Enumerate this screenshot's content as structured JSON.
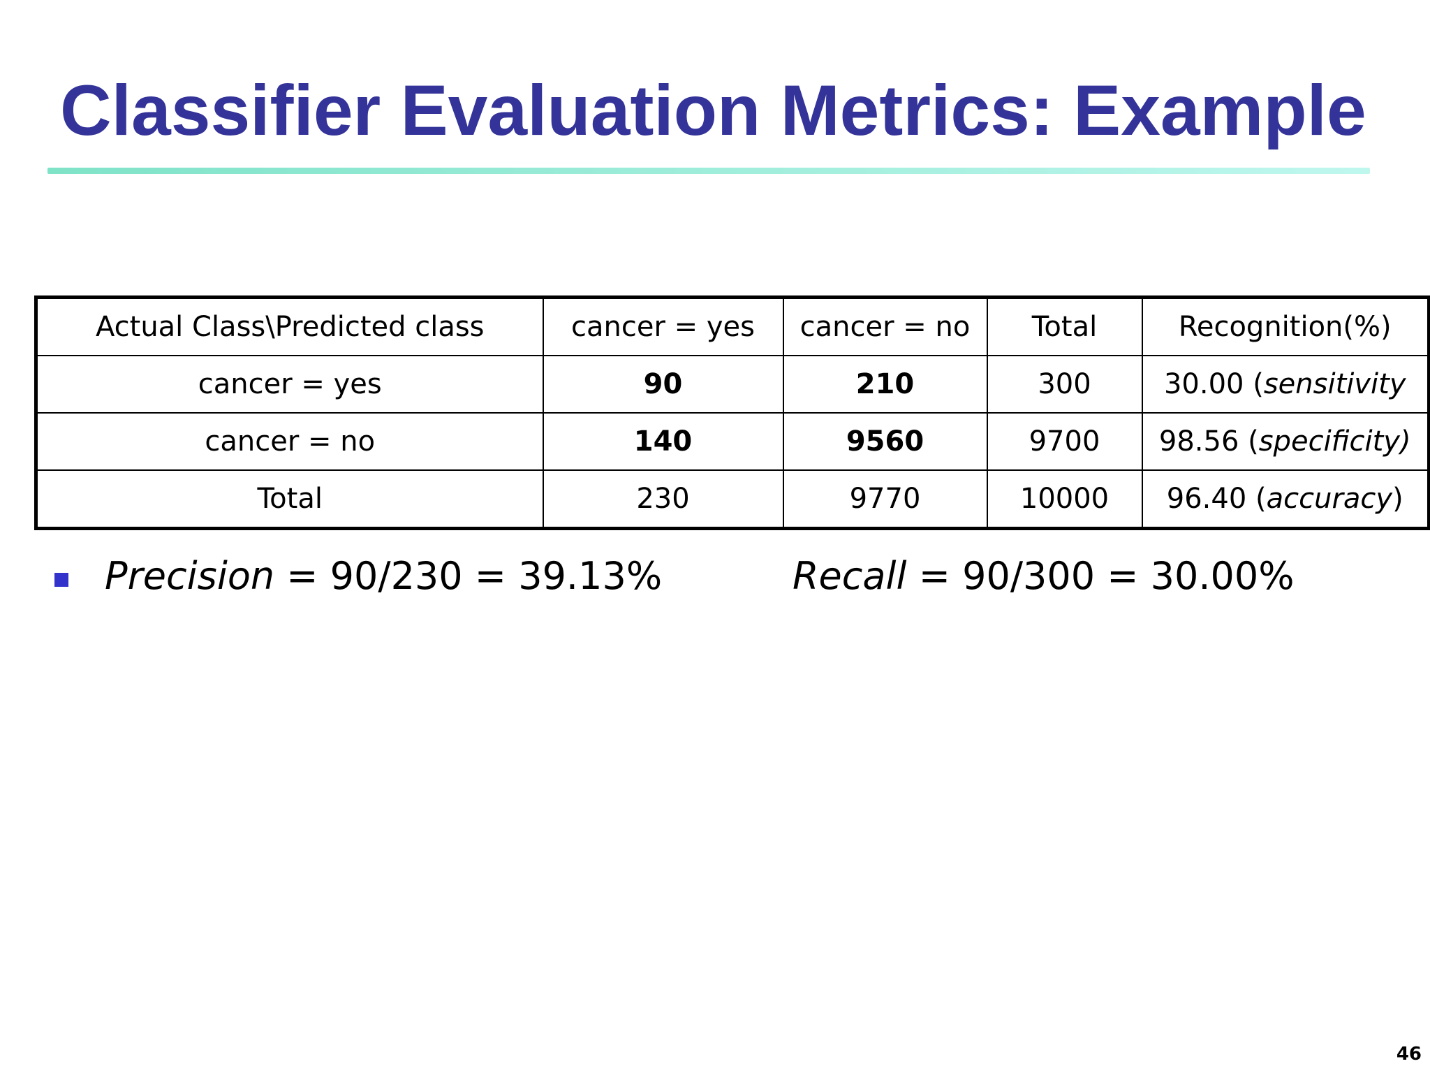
{
  "slide": {
    "title": "Classifier Evaluation Metrics: Example",
    "page_number": "46"
  },
  "table": {
    "headers": [
      "Actual Class\\Predicted class",
      "cancer = yes",
      "cancer = no",
      "Total",
      "Recognition(%)"
    ],
    "rows": [
      {
        "label": "cancer = yes",
        "yes": "90",
        "no": "210",
        "total": "300",
        "recognition_value": "30.00",
        "recognition_open": " (",
        "recognition_term": "sensitivity",
        "recognition_close": ""
      },
      {
        "label": "cancer = no",
        "yes": "140",
        "no": "9560",
        "total": "9700",
        "recognition_value": "98.56",
        "recognition_open": " (",
        "recognition_term": "specificity)",
        "recognition_close": ""
      },
      {
        "label": "Total",
        "yes": "230",
        "no": "9770",
        "total": "10000",
        "recognition_value": "96.40",
        "recognition_open": " (",
        "recognition_term": "accuracy",
        "recognition_close": ")"
      }
    ]
  },
  "metrics": {
    "precision_label": "Precision",
    "precision_formula": " = 90/230 = 39.13%",
    "recall_label": "Recall",
    "recall_formula": " = 90/300 = 30.00%"
  },
  "colors": {
    "title": "#333399",
    "bullet": "#3333cc",
    "rule_start": "#7fe3c8",
    "rule_end": "#bff7ee"
  }
}
